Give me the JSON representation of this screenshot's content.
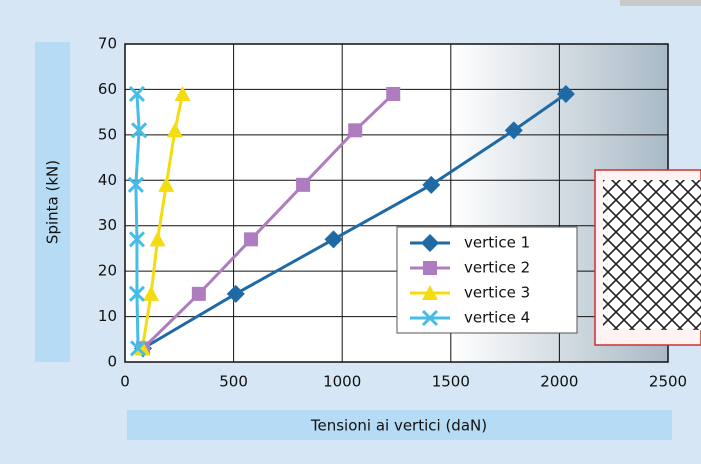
{
  "chart_data": {
    "type": "line",
    "x_label": "Tensioni ai vertici (daN)",
    "y_label": "Spinta (kN)",
    "xlim": [
      0,
      2500
    ],
    "xticks": [
      0,
      500,
      1000,
      1500,
      2000,
      2500
    ],
    "ylim": [
      0,
      70
    ],
    "yticks": [
      0,
      10,
      20,
      30,
      40,
      50,
      60,
      70
    ],
    "grid": true,
    "legend": "center-right",
    "series": [
      {
        "name": "vertice 1",
        "color": "#1f6aa5",
        "marker": "diamond",
        "x": [
          83,
          510,
          960,
          1410,
          1790,
          2030
        ],
        "values": [
          3,
          15,
          27,
          39,
          51,
          59
        ]
      },
      {
        "name": "vertice 2",
        "color": "#b07cc0",
        "marker": "square",
        "x": [
          83,
          340,
          580,
          820,
          1060,
          1235
        ],
        "values": [
          3,
          15,
          27,
          39,
          51,
          59
        ]
      },
      {
        "name": "vertice 3",
        "color": "#f5dc10",
        "marker": "triangle",
        "x": [
          80,
          120,
          150,
          190,
          230,
          265
        ],
        "values": [
          3,
          15,
          27,
          39,
          51,
          59
        ]
      },
      {
        "name": "vertice 4",
        "color": "#45bde6",
        "marker": "x",
        "x": [
          60,
          55,
          55,
          50,
          65,
          55
        ],
        "values": [
          3,
          15,
          27,
          39,
          51,
          59
        ]
      }
    ]
  }
}
